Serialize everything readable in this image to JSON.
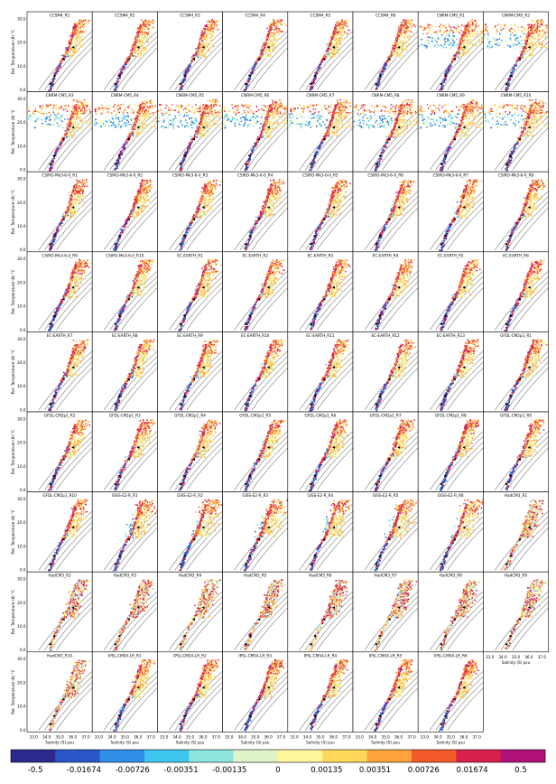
{
  "chart_data": {
    "type": "scatter",
    "description_kind": "ts-diagram-grid",
    "ylabel": "Pot. Temperature (θ) °C",
    "xlabel": "Salinity (S) psu",
    "y_ticks": [
      "0.0",
      "10.0",
      "20.0",
      "30.0"
    ],
    "x_ticks": [
      "33.0",
      "34.0",
      "35.0",
      "36.0",
      "37.0"
    ],
    "colorbar": {
      "labels": [
        "-0.5",
        "-0.01674",
        "-0.00726",
        "-0.00351",
        "-0.00135",
        "0",
        "0.00135",
        "0.00351",
        "0.00726",
        "0.01674",
        "0.5"
      ],
      "colors": [
        "#2b2a8c",
        "#2a56c8",
        "#2f8ee6",
        "#3fc6ee",
        "#8fe6e0",
        "#dff5c8",
        "#fff79a",
        "#ffd75a",
        "#ffa23a",
        "#f25a2a",
        "#d8214a",
        "#b0127a"
      ]
    },
    "panels": [
      {
        "title": "CCSM4_R1",
        "style": "ccsm"
      },
      {
        "title": "CCSM4_R2",
        "style": "ccsm"
      },
      {
        "title": "CCSM4_R3",
        "style": "ccsm"
      },
      {
        "title": "CCSM4_R4",
        "style": "ccsm"
      },
      {
        "title": "CCSM4_R5",
        "style": "ccsm"
      },
      {
        "title": "CCSM4_R6",
        "style": "ccsm"
      },
      {
        "title": "CNRM-CM5_R1",
        "style": "cnrm"
      },
      {
        "title": "CNRM-CM5_R2",
        "style": "cnrm"
      },
      {
        "title": "CNRM-CM5_R3",
        "style": "cnrm"
      },
      {
        "title": "CNRM-CM5_R4",
        "style": "cnrm"
      },
      {
        "title": "CNRM-CM5_R5",
        "style": "cnrm"
      },
      {
        "title": "CNRM-CM5_R6",
        "style": "cnrm"
      },
      {
        "title": "CNRM-CM5_R7",
        "style": "cnrm"
      },
      {
        "title": "CNRM-CM5_R8",
        "style": "cnrm"
      },
      {
        "title": "CNRM-CM5_R9",
        "style": "cnrm"
      },
      {
        "title": "CNRM-CM5_R10",
        "style": "cnrm"
      },
      {
        "title": "CSIRO-Mk3-6-0_R1",
        "style": "csiro"
      },
      {
        "title": "CSIRO-Mk3-6-0_R2",
        "style": "csiro"
      },
      {
        "title": "CSIRO-Mk3-6-0_R3",
        "style": "csiro"
      },
      {
        "title": "CSIRO-Mk3-6-0_R4",
        "style": "csiro"
      },
      {
        "title": "CSIRO-Mk3-6-0_R5",
        "style": "csiro"
      },
      {
        "title": "CSIRO-Mk3-6-0_R6",
        "style": "csiro"
      },
      {
        "title": "CSIRO-Mk3-6-0_R7",
        "style": "csiro"
      },
      {
        "title": "CSIRO-Mk3-6-0_R8",
        "style": "csiro"
      },
      {
        "title": "CSIRO-Mk3-6-0_R9",
        "style": "csiro"
      },
      {
        "title": "CSIRO-Mk3-6-0_R10",
        "style": "csiro"
      },
      {
        "title": "EC-EARTH_R1",
        "style": "ec"
      },
      {
        "title": "EC-EARTH_R2",
        "style": "ec"
      },
      {
        "title": "EC-EARTH_R3",
        "style": "ec"
      },
      {
        "title": "EC-EARTH_R4",
        "style": "ec"
      },
      {
        "title": "EC-EARTH_R5",
        "style": "ec"
      },
      {
        "title": "EC-EARTH_R6",
        "style": "ec"
      },
      {
        "title": "EC-EARTH_R7",
        "style": "ec"
      },
      {
        "title": "EC-EARTH_R8",
        "style": "ec"
      },
      {
        "title": "EC-EARTH_R9",
        "style": "ec"
      },
      {
        "title": "EC-EARTH_R10",
        "style": "ec"
      },
      {
        "title": "EC-EARTH_R11",
        "style": "ec"
      },
      {
        "title": "EC-EARTH_R12",
        "style": "ec"
      },
      {
        "title": "EC-EARTH_R13",
        "style": "ec"
      },
      {
        "title": "GFDL-CM2p1_R1",
        "style": "gfdl"
      },
      {
        "title": "GFDL-CM2p1_R2",
        "style": "gfdl"
      },
      {
        "title": "GFDL-CM2p1_R3",
        "style": "gfdl"
      },
      {
        "title": "GFDL-CM2p1_R4",
        "style": "gfdl"
      },
      {
        "title": "GFDL-CM2p1_R5",
        "style": "gfdl"
      },
      {
        "title": "GFDL-CM2p1_R6",
        "style": "gfdl"
      },
      {
        "title": "GFDL-CM2p1_R7",
        "style": "gfdl"
      },
      {
        "title": "GFDL-CM2p1_R8",
        "style": "gfdl"
      },
      {
        "title": "GFDL-CM2p1_R9",
        "style": "gfdl"
      },
      {
        "title": "GFDL-CM2p1_R10",
        "style": "gfdl"
      },
      {
        "title": "GISS-E2-R_R1",
        "style": "giss"
      },
      {
        "title": "GISS-E2-R_R2",
        "style": "giss"
      },
      {
        "title": "GISS-E2-R_R3",
        "style": "giss"
      },
      {
        "title": "GISS-E2-R_R4",
        "style": "giss"
      },
      {
        "title": "GISS-E2-R_R5",
        "style": "giss"
      },
      {
        "title": "GISS-E2-R_R6",
        "style": "giss"
      },
      {
        "title": "HadCM3_R1",
        "style": "had"
      },
      {
        "title": "HadCM3_R2",
        "style": "had"
      },
      {
        "title": "HadCM3_R3",
        "style": "had"
      },
      {
        "title": "HadCM3_R4",
        "style": "had"
      },
      {
        "title": "HadCM3_R5",
        "style": "had"
      },
      {
        "title": "HadCM3_R6",
        "style": "had"
      },
      {
        "title": "HadCM3_R7",
        "style": "had"
      },
      {
        "title": "HadCM3_R8",
        "style": "had"
      },
      {
        "title": "HadCM3_R9",
        "style": "had"
      },
      {
        "title": "HadCM3_R10",
        "style": "had"
      },
      {
        "title": "IPSL-CM5A-LR_R1",
        "style": "ipsl"
      },
      {
        "title": "IPSL-CM5A-LR_R2",
        "style": "ipsl"
      },
      {
        "title": "IPSL-CM5A-LR_R3",
        "style": "ipsl"
      },
      {
        "title": "IPSL-CM5A-LR_R4",
        "style": "ipsl"
      },
      {
        "title": "IPSL-CM5A-LR_R5",
        "style": "ipsl"
      },
      {
        "title": "IPSL-CM5A-LR_R6",
        "style": "ipsl"
      }
    ]
  }
}
